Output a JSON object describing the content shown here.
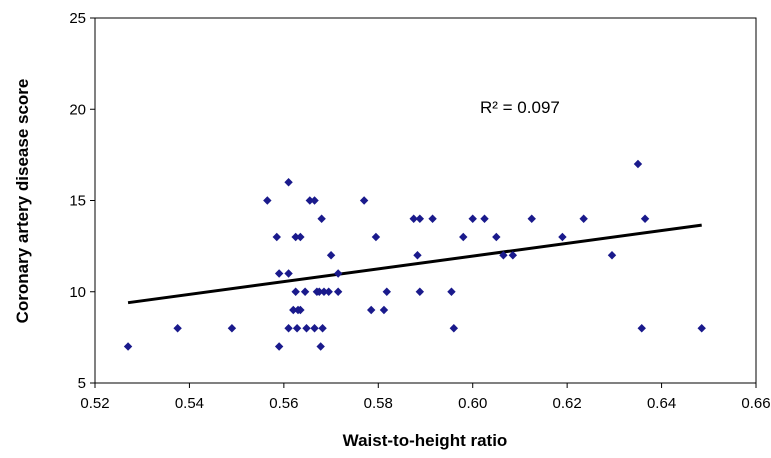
{
  "chart_data": {
    "type": "scatter",
    "title": "",
    "xlabel": "Waist-to-height ratio",
    "ylabel": "Coronary artery disease score",
    "xlim": [
      0.52,
      0.66
    ],
    "ylim": [
      5,
      25
    ],
    "x_ticks": [
      "0.52",
      "0.54",
      "0.56",
      "0.58",
      "0.60",
      "0.62",
      "0.64",
      "0.66"
    ],
    "y_ticks": [
      "5",
      "10",
      "15",
      "20",
      "25"
    ],
    "grid": false,
    "legend": "none",
    "marker": "diamond",
    "marker_color": "#1a1a8c",
    "trendline": {
      "type": "linear",
      "x": [
        0.527,
        0.6485
      ],
      "y": [
        9.4,
        13.65
      ],
      "color": "#000000"
    },
    "annotation": "R² = 0.097",
    "points": [
      [
        0.527,
        7
      ],
      [
        0.5375,
        8
      ],
      [
        0.549,
        8
      ],
      [
        0.5565,
        15
      ],
      [
        0.5585,
        13
      ],
      [
        0.559,
        11
      ],
      [
        0.559,
        7
      ],
      [
        0.561,
        16
      ],
      [
        0.561,
        11
      ],
      [
        0.561,
        8
      ],
      [
        0.562,
        9
      ],
      [
        0.5625,
        13
      ],
      [
        0.5625,
        10
      ],
      [
        0.5628,
        8
      ],
      [
        0.563,
        9
      ],
      [
        0.5635,
        13
      ],
      [
        0.5635,
        9
      ],
      [
        0.5645,
        10
      ],
      [
        0.5648,
        8
      ],
      [
        0.5655,
        15
      ],
      [
        0.5665,
        15
      ],
      [
        0.5665,
        8
      ],
      [
        0.567,
        10
      ],
      [
        0.5675,
        10
      ],
      [
        0.5678,
        7
      ],
      [
        0.568,
        14
      ],
      [
        0.5682,
        8
      ],
      [
        0.5685,
        10
      ],
      [
        0.5695,
        10
      ],
      [
        0.57,
        12
      ],
      [
        0.5715,
        11
      ],
      [
        0.5715,
        10
      ],
      [
        0.577,
        15
      ],
      [
        0.5785,
        9
      ],
      [
        0.5795,
        13
      ],
      [
        0.5812,
        9
      ],
      [
        0.5818,
        10
      ],
      [
        0.5875,
        14
      ],
      [
        0.5883,
        12
      ],
      [
        0.5888,
        14
      ],
      [
        0.5888,
        10
      ],
      [
        0.5915,
        14
      ],
      [
        0.5955,
        10
      ],
      [
        0.596,
        8
      ],
      [
        0.598,
        13
      ],
      [
        0.6,
        14
      ],
      [
        0.6025,
        14
      ],
      [
        0.605,
        13
      ],
      [
        0.6065,
        12
      ],
      [
        0.6085,
        12
      ],
      [
        0.6125,
        14
      ],
      [
        0.619,
        13
      ],
      [
        0.6235,
        14
      ],
      [
        0.6295,
        12
      ],
      [
        0.635,
        17
      ],
      [
        0.6358,
        8
      ],
      [
        0.6365,
        14
      ],
      [
        0.6485,
        8
      ]
    ]
  }
}
